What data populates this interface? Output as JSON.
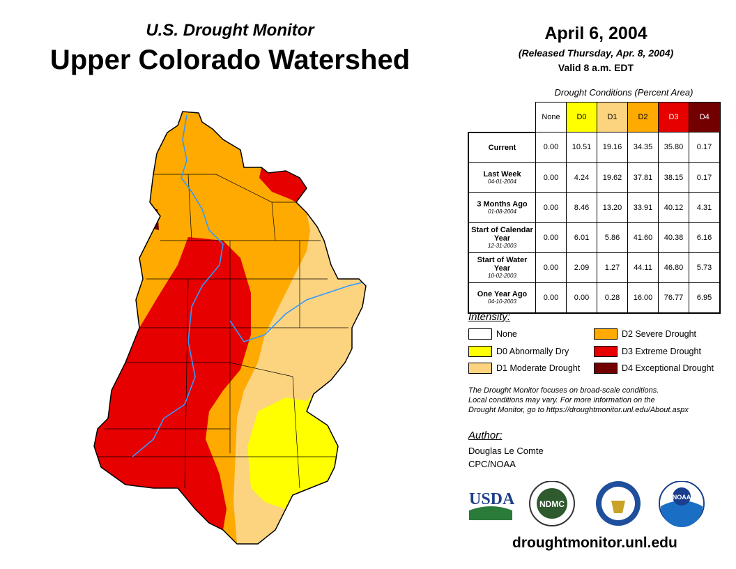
{
  "header": {
    "subtitle": "U.S. Drought Monitor",
    "title": "Upper Colorado Watershed",
    "date": "April 6, 2004",
    "released": "(Released Thursday, Apr. 8, 2004)",
    "valid": "Valid 8 a.m. EDT"
  },
  "table": {
    "caption": "Drought Conditions (Percent Area)",
    "columns": [
      "None",
      "D0",
      "D1",
      "D2",
      "D3",
      "D4"
    ],
    "column_colors": [
      "#ffffff",
      "#ffff00",
      "#fcd37f",
      "#ffaa00",
      "#e60000",
      "#730000"
    ],
    "rows": [
      {
        "label": "Current",
        "sublabel": "",
        "values": [
          "0.00",
          "10.51",
          "19.16",
          "34.35",
          "35.80",
          "0.17"
        ]
      },
      {
        "label": "Last Week",
        "sublabel": "04-01-2004",
        "values": [
          "0.00",
          "4.24",
          "19.62",
          "37.81",
          "38.15",
          "0.17"
        ]
      },
      {
        "label": "3 Months Ago",
        "sublabel": "01-08-2004",
        "values": [
          "0.00",
          "8.46",
          "13.20",
          "33.91",
          "40.12",
          "4.31"
        ]
      },
      {
        "label": "Start of Calendar Year",
        "sublabel": "12-31-2003",
        "values": [
          "0.00",
          "6.01",
          "5.86",
          "41.60",
          "40.38",
          "6.16"
        ]
      },
      {
        "label": "Start of Water Year",
        "sublabel": "10-02-2003",
        "values": [
          "0.00",
          "2.09",
          "1.27",
          "44.11",
          "46.80",
          "5.73"
        ]
      },
      {
        "label": "One Year Ago",
        "sublabel": "04-10-2003",
        "values": [
          "0.00",
          "0.00",
          "0.28",
          "16.00",
          "76.77",
          "6.95"
        ]
      }
    ]
  },
  "legend": {
    "title": "Intensity:",
    "items": [
      {
        "label": "None",
        "color": "#ffffff"
      },
      {
        "label": "D0 Abnormally Dry",
        "color": "#ffff00"
      },
      {
        "label": "D1 Moderate Drought",
        "color": "#fcd37f"
      },
      {
        "label": "D2 Severe Drought",
        "color": "#ffaa00"
      },
      {
        "label": "D3 Extreme Drought",
        "color": "#e60000"
      },
      {
        "label": "D4 Exceptional Drought",
        "color": "#730000"
      }
    ]
  },
  "note": [
    "The Drought Monitor focuses on broad-scale conditions.",
    "Local conditions may vary. For more information on the",
    "Drought Monitor, go to https://droughtmonitor.unl.edu/About.aspx"
  ],
  "author": {
    "heading": "Author:",
    "name": "Douglas Le Comte",
    "org": "CPC/NOAA"
  },
  "logos": {
    "usda": "USDA",
    "ndmc": "NDMC",
    "noaa": "NOAA"
  },
  "url": "droughtmonitor.unl.edu"
}
